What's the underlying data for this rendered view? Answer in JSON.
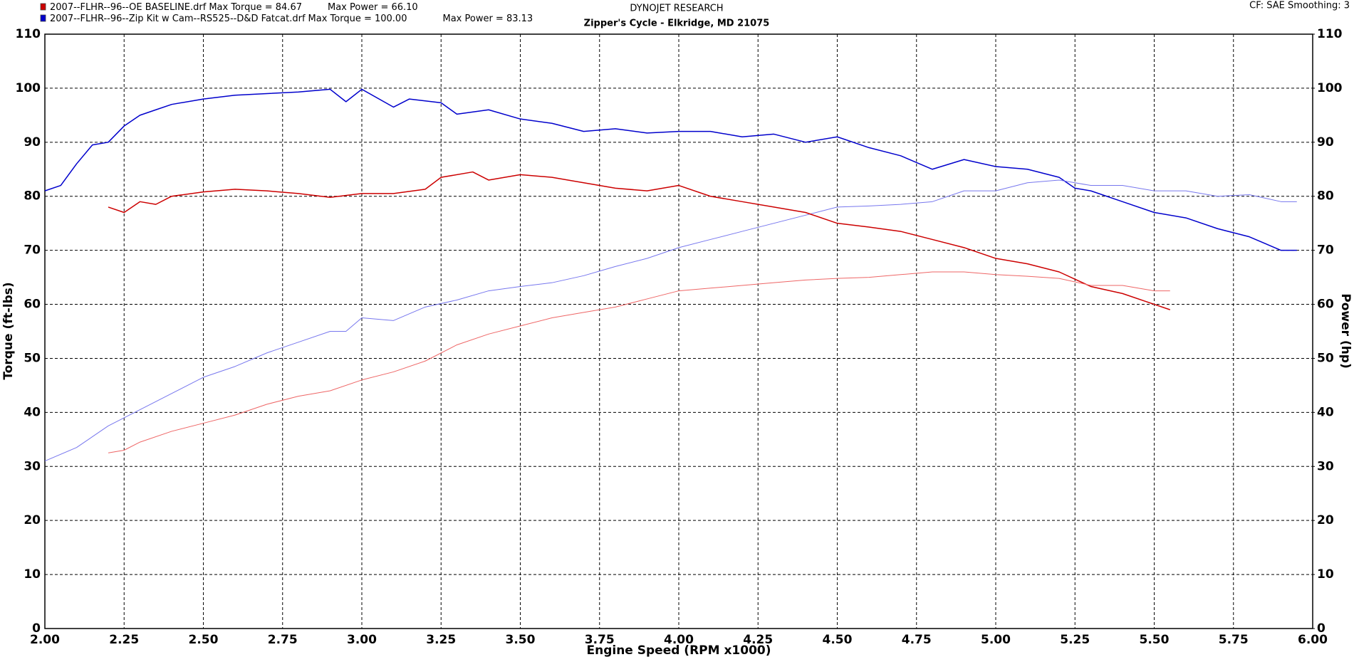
{
  "chart_data": {
    "type": "line",
    "title": "DYNOJET RESEARCH",
    "subtitle": "Zipper's Cycle - Elkridge, MD 21075",
    "settings_text": "CF: SAE  Smoothing: 3",
    "xlabel": "Engine Speed (RPM x1000)",
    "ylabel": "Torque (ft-lbs)",
    "y2label": "Power (hp)",
    "xlim": [
      2,
      6
    ],
    "ylim": [
      0,
      110
    ],
    "y2lim": [
      0,
      110
    ],
    "grid": true,
    "xticks": [
      {
        "value": 2,
        "label": "2.00"
      },
      2.25,
      {
        "value": 2.5,
        "label": "2.50"
      },
      2.75,
      {
        "value": 3,
        "label": "3.00"
      },
      3.25,
      {
        "value": 3.5,
        "label": "3.50"
      },
      3.75,
      {
        "value": 4,
        "label": "4.00"
      },
      4.25,
      {
        "value": 4.5,
        "label": "4.50"
      },
      4.75,
      {
        "value": 5,
        "label": "5.00"
      },
      5.25,
      {
        "value": 5.5,
        "label": "5.50"
      },
      5.75,
      {
        "value": 6,
        "label": "6.00"
      }
    ],
    "yticks": [
      0,
      10,
      20,
      30,
      40,
      50,
      60,
      70,
      80,
      90,
      100,
      110
    ],
    "y2ticks": [
      0,
      10,
      20,
      30,
      40,
      50,
      60,
      70,
      80,
      90,
      100,
      110
    ],
    "legend": [
      {
        "label": "2007--FLHR--96--OE BASELINE.drf",
        "max_torque": "Max Torque = 84.67",
        "max_power": "Max Power = 66.10",
        "color": "#cc0000"
      },
      {
        "label": "2007--FLHR--96--Zip Kit w Cam--RS525--D&D Fatcat.drf",
        "max_torque": "Max Torque = 100.00",
        "max_power": "Max Power = 83.13",
        "color": "#0000cc"
      }
    ],
    "series": [
      {
        "color": "#0000cc",
        "axis": "y",
        "x": [
          2.0,
          2.05,
          2.1,
          2.15,
          2.2,
          2.25,
          2.3,
          2.35,
          2.4,
          2.5,
          2.6,
          2.7,
          2.8,
          2.9,
          2.95,
          3.0,
          3.1,
          3.15,
          3.25,
          3.3,
          3.4,
          3.5,
          3.6,
          3.7,
          3.8,
          3.9,
          4.0,
          4.1,
          4.2,
          4.3,
          4.4,
          4.5,
          4.6,
          4.7,
          4.8,
          4.9,
          5.0,
          5.1,
          5.2,
          5.25,
          5.3,
          5.4,
          5.5,
          5.6,
          5.7,
          5.8,
          5.9,
          5.95
        ],
        "values": [
          81,
          82,
          86,
          89.5,
          90,
          93,
          95,
          96,
          97,
          98,
          98.7,
          99,
          99.3,
          99.8,
          97.5,
          99.8,
          96.5,
          98,
          97.3,
          95.2,
          96,
          94.3,
          93.5,
          92,
          92.5,
          91.7,
          92,
          92,
          91,
          91.5,
          90,
          91,
          89,
          87.5,
          85,
          86.8,
          85.5,
          85,
          83.5,
          81.5,
          81,
          79,
          77,
          76,
          74,
          72.5,
          70,
          70
        ]
      },
      {
        "color": "#7777ee",
        "axis": "y2",
        "x": [
          2.0,
          2.1,
          2.2,
          2.3,
          2.4,
          2.5,
          2.6,
          2.7,
          2.8,
          2.9,
          2.95,
          3.0,
          3.1,
          3.2,
          3.3,
          3.4,
          3.5,
          3.6,
          3.7,
          3.8,
          3.9,
          4.0,
          4.1,
          4.2,
          4.3,
          4.4,
          4.5,
          4.6,
          4.7,
          4.8,
          4.9,
          5.0,
          5.1,
          5.2,
          5.3,
          5.4,
          5.5,
          5.6,
          5.7,
          5.8,
          5.9,
          5.95
        ],
        "values": [
          31,
          33.5,
          37.5,
          40.5,
          43.5,
          46.5,
          48.5,
          51,
          53,
          55,
          55,
          57.5,
          57,
          59.5,
          60.8,
          62.5,
          63.3,
          64,
          65.3,
          67,
          68.5,
          70.5,
          72,
          73.5,
          75,
          76.5,
          78,
          78.2,
          78.5,
          79,
          81,
          81,
          82.5,
          83,
          82,
          82,
          81,
          81,
          80,
          80.3,
          79,
          79
        ]
      },
      {
        "color": "#cc0000",
        "axis": "y",
        "x": [
          2.2,
          2.25,
          2.3,
          2.35,
          2.4,
          2.5,
          2.6,
          2.7,
          2.8,
          2.9,
          3.0,
          3.1,
          3.2,
          3.25,
          3.35,
          3.4,
          3.5,
          3.6,
          3.7,
          3.8,
          3.9,
          4.0,
          4.1,
          4.2,
          4.3,
          4.4,
          4.5,
          4.6,
          4.7,
          4.8,
          4.9,
          5.0,
          5.1,
          5.2,
          5.3,
          5.4,
          5.5,
          5.55
        ],
        "values": [
          78,
          77,
          79,
          78.5,
          80,
          80.8,
          81.3,
          81,
          80.5,
          79.8,
          80.5,
          80.5,
          81.3,
          83.5,
          84.5,
          83,
          84,
          83.5,
          82.5,
          81.5,
          81,
          82,
          80,
          79,
          78,
          77,
          75,
          74.3,
          73.5,
          72,
          70.5,
          68.5,
          67.5,
          66,
          63.3,
          62,
          60,
          59
        ]
      },
      {
        "color": "#ee6666",
        "axis": "y2",
        "x": [
          2.2,
          2.25,
          2.3,
          2.4,
          2.5,
          2.6,
          2.7,
          2.8,
          2.9,
          3.0,
          3.1,
          3.2,
          3.3,
          3.4,
          3.5,
          3.6,
          3.7,
          3.8,
          3.9,
          4.0,
          4.1,
          4.2,
          4.3,
          4.4,
          4.5,
          4.6,
          4.7,
          4.8,
          4.9,
          5.0,
          5.1,
          5.2,
          5.3,
          5.4,
          5.5,
          5.55
        ],
        "values": [
          32.5,
          33,
          34.5,
          36.5,
          38,
          39.5,
          41.5,
          43,
          44,
          46,
          47.5,
          49.5,
          52.5,
          54.5,
          56,
          57.5,
          58.5,
          59.5,
          61,
          62.5,
          63,
          63.5,
          64,
          64.5,
          64.8,
          65,
          65.5,
          66,
          66,
          65.5,
          65.2,
          64.8,
          63.5,
          63.5,
          62.5,
          62.5
        ]
      }
    ]
  }
}
